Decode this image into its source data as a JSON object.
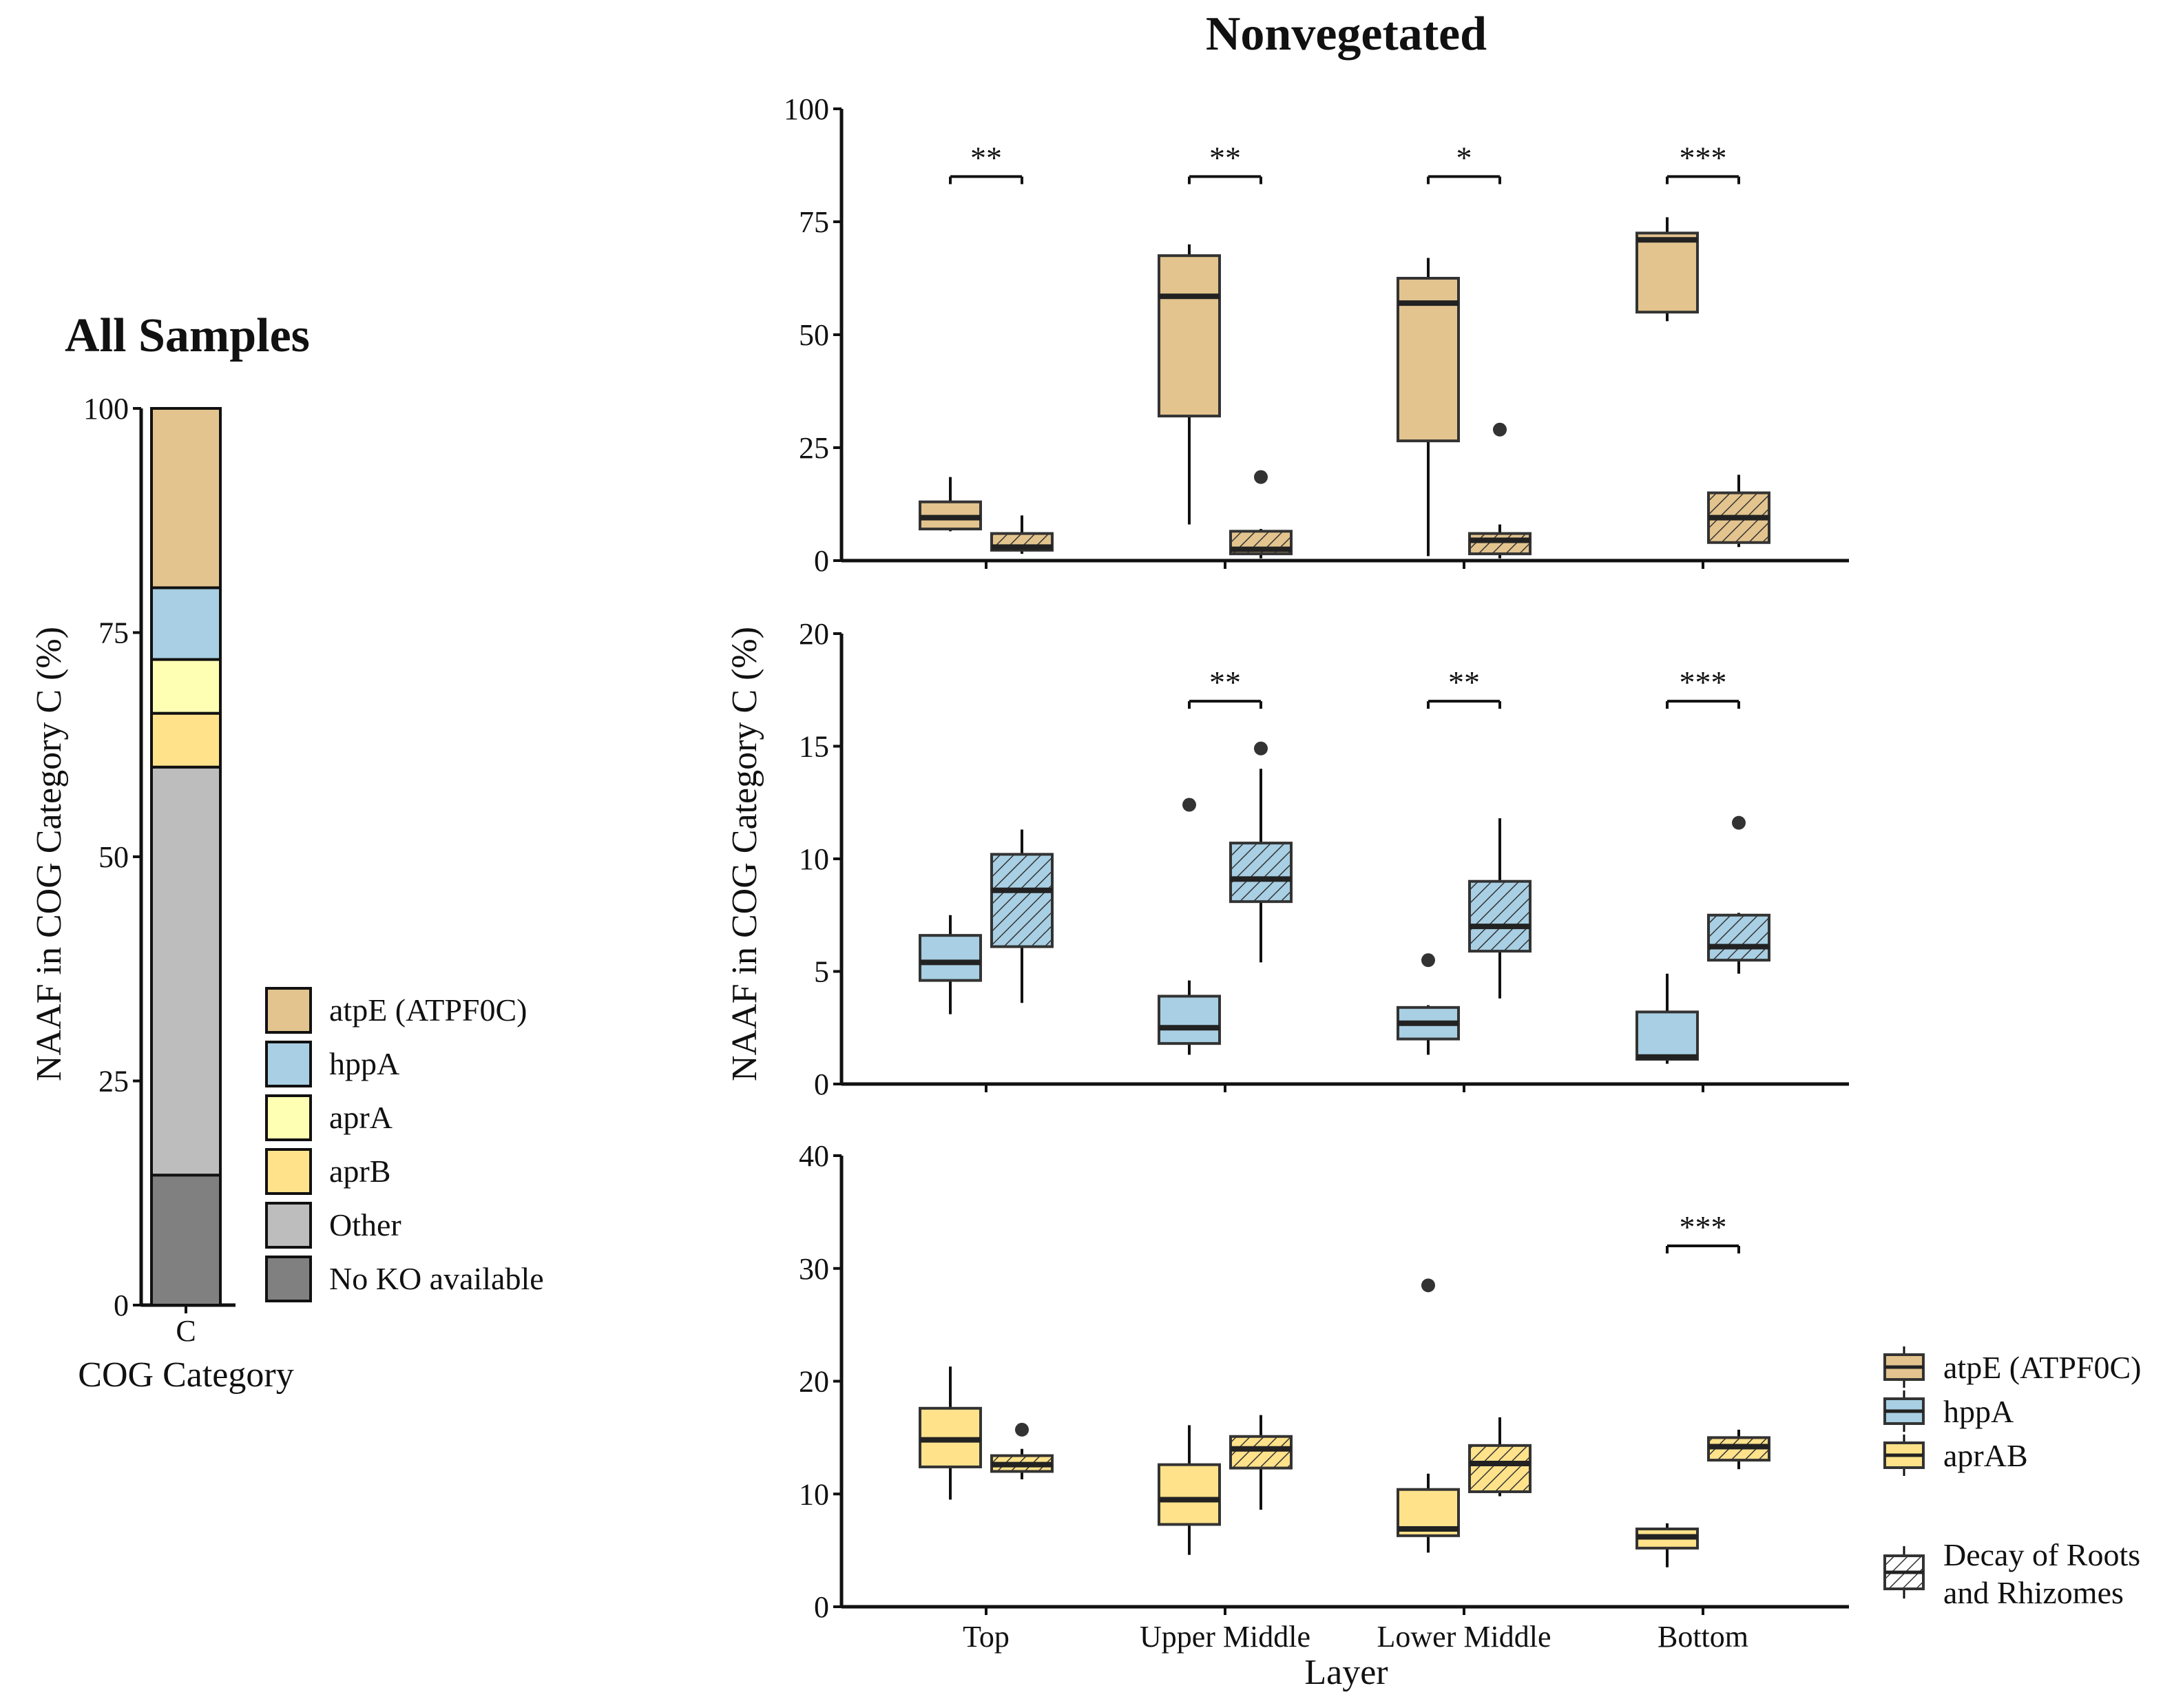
{
  "left_panel": {
    "title": "All Samples",
    "ylabel": "NAAF in COG Category C (%)",
    "xlabel": "COG Category",
    "yticks": [
      "0",
      "25",
      "50",
      "75",
      "100"
    ]
  },
  "right_panel": {
    "title": "Nonvegetated",
    "ylabel": "NAAF in COG Category C (%)",
    "xlabel": "Layer",
    "top_yticks": [
      "0",
      "25",
      "50",
      "75",
      "100"
    ],
    "mid_yticks": [
      "0",
      "5",
      "10",
      "15",
      "20"
    ],
    "bot_yticks": [
      "0",
      "10",
      "20",
      "30",
      "40"
    ]
  },
  "legend_left": [
    {
      "label": "atpE (ATPF0C)",
      "color": "#e3c48e"
    },
    {
      "label": "hppA",
      "color": "#a8cfe3"
    },
    {
      "label": "aprA",
      "color": "#ffffb3"
    },
    {
      "label": "aprB",
      "color": "#ffe28a"
    },
    {
      "label": "Other",
      "color": "#bdbdbd"
    },
    {
      "label": "No KO available",
      "color": "#808080"
    }
  ],
  "legend_right": {
    "genes": [
      {
        "label": "atpE (ATPF0C)",
        "color": "#e3c48e"
      },
      {
        "label": "hppA",
        "color": "#a8cfe3"
      },
      {
        "label": "aprAB",
        "color": "#ffe28a"
      }
    ],
    "hatch_label_line1": "Decay of Roots",
    "hatch_label_line2": "and Rhizomes"
  },
  "chart_data": [
    {
      "type": "bar",
      "title": "All Samples",
      "xlabel": "COG Category",
      "ylabel": "NAAF in COG Category C (%)",
      "categories": [
        "C"
      ],
      "stacked": true,
      "ylim": [
        0,
        100
      ],
      "series": [
        {
          "name": "No KO available",
          "values": [
            14.5
          ],
          "color": "#808080"
        },
        {
          "name": "Other",
          "values": [
            45.5
          ],
          "color": "#bdbdbd"
        },
        {
          "name": "aprB",
          "values": [
            6
          ],
          "color": "#ffe28a"
        },
        {
          "name": "aprA",
          "values": [
            6
          ],
          "color": "#ffffb3"
        },
        {
          "name": "hppA",
          "values": [
            8
          ],
          "color": "#a8cfe3"
        },
        {
          "name": "atpE (ATPF0C)",
          "values": [
            20
          ],
          "color": "#e3c48e"
        }
      ]
    },
    {
      "type": "box",
      "title": "Nonvegetated",
      "gene": "atpE (ATPF0C)",
      "color": "#e3c48e",
      "ylim": [
        0,
        100
      ],
      "ylabel": "NAAF in COG Category C (%)",
      "categories": [
        "Top",
        "Upper Middle",
        "Lower Middle",
        "Bottom"
      ],
      "significance": [
        "**",
        "**",
        "*",
        "***"
      ],
      "sig_y": 85,
      "groups": [
        {
          "category": "Top",
          "condition": "plain",
          "whisker_low": 6.5,
          "q1": 7,
          "median": 9.5,
          "q3": 13,
          "whisker_high": 18.5,
          "outliers": []
        },
        {
          "category": "Top",
          "condition": "hatched",
          "whisker_low": 1.5,
          "q1": 2.3,
          "median": 3,
          "q3": 6,
          "whisker_high": 10,
          "outliers": []
        },
        {
          "category": "Upper Middle",
          "condition": "plain",
          "whisker_low": 8,
          "q1": 32,
          "median": 58.5,
          "q3": 67.5,
          "whisker_high": 70,
          "outliers": []
        },
        {
          "category": "Upper Middle",
          "condition": "hatched",
          "whisker_low": 0.5,
          "q1": 1.5,
          "median": 2.5,
          "q3": 6.5,
          "whisker_high": 7,
          "outliers": [
            18.5
          ]
        },
        {
          "category": "Lower Middle",
          "condition": "plain",
          "whisker_low": 1,
          "q1": 26.5,
          "median": 57,
          "q3": 62.5,
          "whisker_high": 67,
          "outliers": []
        },
        {
          "category": "Lower Middle",
          "condition": "hatched",
          "whisker_low": 0.5,
          "q1": 1.5,
          "median": 4.5,
          "q3": 6,
          "whisker_high": 8,
          "outliers": [
            29
          ]
        },
        {
          "category": "Bottom",
          "condition": "plain",
          "whisker_low": 53,
          "q1": 55,
          "median": 71,
          "q3": 72.5,
          "whisker_high": 76,
          "outliers": []
        },
        {
          "category": "Bottom",
          "condition": "hatched",
          "whisker_low": 3,
          "q1": 4,
          "median": 9.5,
          "q3": 15,
          "whisker_high": 19,
          "outliers": []
        }
      ]
    },
    {
      "type": "box",
      "gene": "hppA",
      "color": "#a8cfe3",
      "ylim": [
        0,
        20
      ],
      "ylabel": "NAAF in COG Category C (%)",
      "categories": [
        "Top",
        "Upper Middle",
        "Lower Middle",
        "Bottom"
      ],
      "significance": [
        "",
        "**",
        "**",
        "***"
      ],
      "sig_y": 17,
      "groups": [
        {
          "category": "Top",
          "condition": "plain",
          "whisker_low": 3.1,
          "q1": 4.6,
          "median": 5.4,
          "q3": 6.6,
          "whisker_high": 7.5,
          "outliers": []
        },
        {
          "category": "Top",
          "condition": "hatched",
          "whisker_low": 3.6,
          "q1": 6.1,
          "median": 8.6,
          "q3": 10.2,
          "whisker_high": 11.3,
          "outliers": []
        },
        {
          "category": "Upper Middle",
          "condition": "plain",
          "whisker_low": 1.3,
          "q1": 1.8,
          "median": 2.5,
          "q3": 3.9,
          "whisker_high": 4.6,
          "outliers": [
            12.4
          ]
        },
        {
          "category": "Upper Middle",
          "condition": "hatched",
          "whisker_low": 5.4,
          "q1": 8.1,
          "median": 9.1,
          "q3": 10.7,
          "whisker_high": 14,
          "outliers": [
            14.9
          ]
        },
        {
          "category": "Lower Middle",
          "condition": "plain",
          "whisker_low": 1.3,
          "q1": 2,
          "median": 2.7,
          "q3": 3.4,
          "whisker_high": 3.5,
          "outliers": [
            5.5
          ]
        },
        {
          "category": "Lower Middle",
          "condition": "hatched",
          "whisker_low": 3.8,
          "q1": 5.9,
          "median": 7,
          "q3": 9,
          "whisker_high": 11.8,
          "outliers": []
        },
        {
          "category": "Bottom",
          "condition": "plain",
          "whisker_low": 0.9,
          "q1": 1.1,
          "median": 1.2,
          "q3": 3.2,
          "whisker_high": 4.9,
          "outliers": []
        },
        {
          "category": "Bottom",
          "condition": "hatched",
          "whisker_low": 4.9,
          "q1": 5.5,
          "median": 6.1,
          "q3": 7.5,
          "whisker_high": 7.6,
          "outliers": [
            11.6
          ]
        }
      ]
    },
    {
      "type": "box",
      "gene": "aprAB",
      "color": "#ffe28a",
      "ylim": [
        0,
        40
      ],
      "xlabel": "Layer",
      "ylabel": "NAAF in COG Category C (%)",
      "categories": [
        "Top",
        "Upper Middle",
        "Lower Middle",
        "Bottom"
      ],
      "significance": [
        "",
        "",
        "",
        "***"
      ],
      "sig_y": 32,
      "groups": [
        {
          "category": "Top",
          "condition": "plain",
          "whisker_low": 9.5,
          "q1": 12.4,
          "median": 14.8,
          "q3": 17.6,
          "whisker_high": 21.3,
          "outliers": []
        },
        {
          "category": "Top",
          "condition": "hatched",
          "whisker_low": 11.3,
          "q1": 12,
          "median": 12.6,
          "q3": 13.4,
          "whisker_high": 14,
          "outliers": [
            15.7
          ]
        },
        {
          "category": "Upper Middle",
          "condition": "plain",
          "whisker_low": 4.6,
          "q1": 7.3,
          "median": 9.5,
          "q3": 12.6,
          "whisker_high": 16.1,
          "outliers": []
        },
        {
          "category": "Upper Middle",
          "condition": "hatched",
          "whisker_low": 8.6,
          "q1": 12.3,
          "median": 14,
          "q3": 15.1,
          "whisker_high": 17,
          "outliers": []
        },
        {
          "category": "Lower Middle",
          "condition": "plain",
          "whisker_low": 4.8,
          "q1": 6.3,
          "median": 6.9,
          "q3": 10.4,
          "whisker_high": 11.8,
          "outliers": [
            28.5
          ]
        },
        {
          "category": "Lower Middle",
          "condition": "hatched",
          "whisker_low": 9.8,
          "q1": 10.2,
          "median": 12.7,
          "q3": 14.3,
          "whisker_high": 16.8,
          "outliers": []
        },
        {
          "category": "Bottom",
          "condition": "plain",
          "whisker_low": 3.5,
          "q1": 5.2,
          "median": 6.2,
          "q3": 6.9,
          "whisker_high": 7.4,
          "outliers": []
        },
        {
          "category": "Bottom",
          "condition": "hatched",
          "whisker_low": 12.2,
          "q1": 13,
          "median": 14.2,
          "q3": 15,
          "whisker_high": 15.7,
          "outliers": []
        }
      ]
    }
  ]
}
